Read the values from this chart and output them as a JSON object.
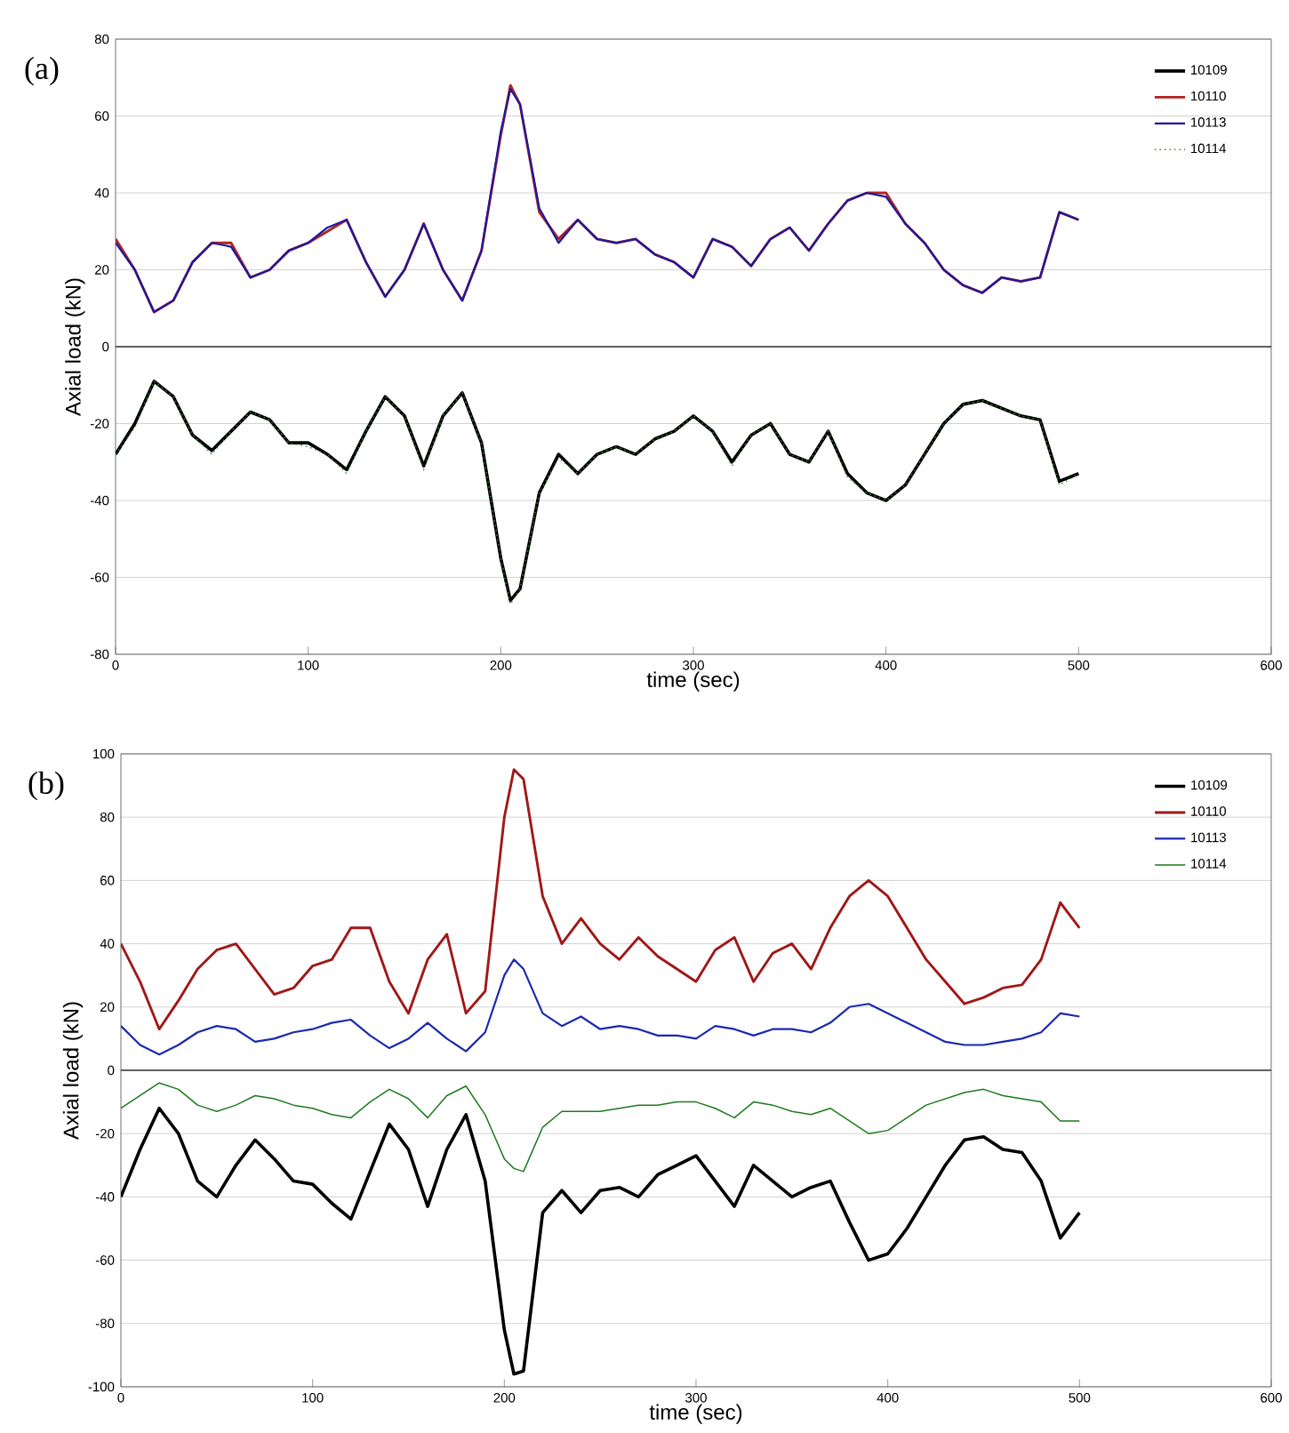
{
  "chart_data": [
    {
      "type": "line",
      "title": "(a)",
      "xlabel": "time (sec)",
      "ylabel": "Axial load (kN)",
      "x": [
        0,
        10,
        20,
        30,
        40,
        50,
        60,
        70,
        80,
        90,
        100,
        110,
        120,
        130,
        140,
        150,
        160,
        170,
        180,
        190,
        200,
        205,
        210,
        220,
        230,
        240,
        250,
        260,
        270,
        280,
        290,
        300,
        310,
        320,
        330,
        340,
        350,
        360,
        370,
        380,
        390,
        400,
        410,
        420,
        430,
        440,
        450,
        460,
        470,
        480,
        490,
        500
      ],
      "xlim": [
        0,
        600
      ],
      "xticks": [
        0,
        100,
        200,
        300,
        400,
        500,
        600
      ],
      "ylim": [
        -80,
        80
      ],
      "yticks": [
        -80,
        -60,
        -40,
        -20,
        0,
        20,
        40,
        60,
        80
      ],
      "grid": "y",
      "legend": "top right",
      "marker": "none",
      "series": [
        {
          "name": "10109",
          "color": "#000000",
          "values": [
            -28,
            -20,
            -9,
            -13,
            -23,
            -27,
            -22,
            -17,
            -19,
            -25,
            -25,
            -28,
            -32,
            -22,
            -13,
            -18,
            -31,
            -18,
            -12,
            -25,
            -55,
            -66,
            -63,
            -38,
            -28,
            -33,
            -28,
            -26,
            -28,
            -24,
            -22,
            -18,
            -22,
            -30,
            -23,
            -20,
            -28,
            -30,
            -22,
            -33,
            -38,
            -40,
            -36,
            -28,
            -20,
            -15,
            -14,
            -16,
            -18,
            -19,
            -35,
            -33
          ]
        },
        {
          "name": "10110",
          "color": "#b22222",
          "values": [
            28,
            20,
            9,
            12,
            22,
            27,
            27,
            18,
            20,
            25,
            27,
            30,
            33,
            22,
            13,
            20,
            32,
            20,
            12,
            25,
            55,
            68,
            63,
            35,
            28,
            33,
            28,
            27,
            28,
            24,
            22,
            18,
            28,
            26,
            21,
            28,
            31,
            25,
            32,
            38,
            40,
            40,
            32,
            27,
            20,
            16,
            14,
            18,
            17,
            18,
            35,
            33
          ]
        },
        {
          "name": "10113",
          "color": "#1a1aa0",
          "values": [
            27,
            20,
            9,
            12,
            22,
            27,
            26,
            18,
            20,
            25,
            27,
            31,
            33,
            22,
            13,
            20,
            32,
            20,
            12,
            25,
            56,
            67,
            63,
            36,
            27,
            33,
            28,
            27,
            28,
            24,
            22,
            18,
            28,
            26,
            21,
            28,
            31,
            25,
            32,
            38,
            40,
            39,
            32,
            27,
            20,
            16,
            14,
            18,
            17,
            18,
            35,
            33
          ]
        },
        {
          "name": "10114",
          "color": "#2e8b2e",
          "line_style": "dotted",
          "values": [
            -28,
            -21,
            -9,
            -13,
            -23,
            -28,
            -22,
            -17,
            -19,
            -25,
            -26,
            -28,
            -33,
            -22,
            -13,
            -18,
            -32,
            -18,
            -12,
            -25,
            -55,
            -67,
            -63,
            -38,
            -29,
            -33,
            -28,
            -26,
            -28,
            -24,
            -22,
            -18,
            -22,
            -31,
            -23,
            -20,
            -28,
            -30,
            -22,
            -34,
            -38,
            -40,
            -36,
            -28,
            -20,
            -15,
            -14,
            -16,
            -18,
            -19,
            -36,
            -33
          ]
        }
      ]
    },
    {
      "type": "line",
      "title": "(b)",
      "xlabel": "time (sec)",
      "ylabel": "Axial load (kN)",
      "x": [
        0,
        10,
        20,
        30,
        40,
        50,
        60,
        70,
        80,
        90,
        100,
        110,
        120,
        130,
        140,
        150,
        160,
        170,
        180,
        190,
        200,
        205,
        210,
        220,
        230,
        240,
        250,
        260,
        270,
        280,
        290,
        300,
        310,
        320,
        330,
        340,
        350,
        360,
        370,
        380,
        390,
        400,
        410,
        420,
        430,
        440,
        450,
        460,
        470,
        480,
        490,
        500
      ],
      "xlim": [
        0,
        600
      ],
      "xticks": [
        0,
        100,
        200,
        300,
        400,
        500,
        600
      ],
      "ylim": [
        -100,
        100
      ],
      "yticks": [
        -100,
        -80,
        -60,
        -40,
        -20,
        0,
        20,
        40,
        60,
        80,
        100
      ],
      "grid": "y",
      "legend": "top right",
      "marker": "none",
      "series": [
        {
          "name": "10109",
          "color": "#000000",
          "values": [
            -40,
            -25,
            -12,
            -20,
            -35,
            -40,
            -30,
            -22,
            -28,
            -35,
            -36,
            -42,
            -47,
            -32,
            -17,
            -25,
            -43,
            -25,
            -14,
            -35,
            -82,
            -96,
            -95,
            -45,
            -38,
            -45,
            -38,
            -37,
            -40,
            -33,
            -30,
            -27,
            -35,
            -43,
            -30,
            -35,
            -40,
            -37,
            -35,
            -48,
            -60,
            -58,
            -50,
            -40,
            -30,
            -22,
            -21,
            -25,
            -26,
            -35,
            -53,
            -45
          ]
        },
        {
          "name": "10110",
          "color": "#a01818",
          "values": [
            40,
            28,
            13,
            22,
            32,
            38,
            40,
            32,
            24,
            26,
            33,
            35,
            45,
            45,
            28,
            18,
            35,
            43,
            18,
            25,
            80,
            95,
            92,
            55,
            40,
            48,
            40,
            35,
            42,
            36,
            32,
            28,
            38,
            42,
            28,
            37,
            40,
            32,
            45,
            55,
            60,
            55,
            45,
            35,
            28,
            21,
            23,
            26,
            27,
            35,
            53,
            45
          ]
        },
        {
          "name": "10113",
          "color": "#1a2ab0",
          "values": [
            14,
            8,
            5,
            8,
            12,
            14,
            13,
            9,
            10,
            12,
            13,
            15,
            16,
            11,
            7,
            10,
            15,
            10,
            6,
            12,
            30,
            35,
            32,
            18,
            14,
            17,
            13,
            14,
            13,
            11,
            11,
            10,
            14,
            13,
            11,
            13,
            13,
            12,
            15,
            20,
            21,
            18,
            15,
            12,
            9,
            8,
            8,
            9,
            10,
            12,
            18,
            17
          ]
        },
        {
          "name": "10114",
          "color": "#1e7a1e",
          "values": [
            -12,
            -8,
            -4,
            -6,
            -11,
            -13,
            -11,
            -8,
            -9,
            -11,
            -12,
            -14,
            -15,
            -10,
            -6,
            -9,
            -15,
            -8,
            -5,
            -14,
            -28,
            -31,
            -32,
            -18,
            -13,
            -13,
            -13,
            -12,
            -11,
            -11,
            -10,
            -10,
            -12,
            -15,
            -10,
            -11,
            -13,
            -14,
            -12,
            -16,
            -20,
            -19,
            -15,
            -11,
            -9,
            -7,
            -6,
            -8,
            -9,
            -10,
            -16,
            -16
          ]
        }
      ]
    }
  ]
}
